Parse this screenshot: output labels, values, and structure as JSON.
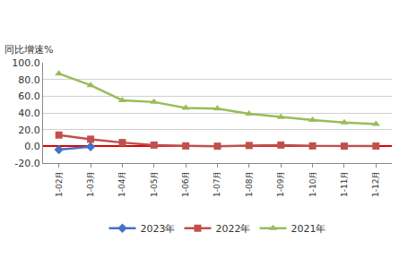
{
  "chart_data": {
    "type": "line",
    "y_label": "同比增速%",
    "categories": [
      "1-02月",
      "1-03月",
      "1-04月",
      "1-05月",
      "1-06月",
      "1-07月",
      "1-08月",
      "1-09月",
      "1-10月",
      "1-11月",
      "1-12月"
    ],
    "series": [
      {
        "name": "2023年",
        "color": "#4472c4",
        "marker": "diamond",
        "values": [
          -4.0,
          -0.5,
          null,
          null,
          null,
          null,
          null,
          null,
          null,
          null,
          null
        ]
      },
      {
        "name": "2022年",
        "color": "#c0504d",
        "marker": "square",
        "values": [
          13.5,
          8.5,
          4.5,
          1.5,
          0.5,
          0.2,
          1.0,
          1.5,
          0.5,
          0.2,
          0.3
        ]
      },
      {
        "name": "2021年",
        "color": "#9bbb59",
        "marker": "triangle-up",
        "values": [
          87.0,
          73.0,
          55.0,
          53.0,
          46.0,
          45.0,
          39.0,
          35.0,
          31.5,
          28.5,
          26.5
        ]
      }
    ],
    "ylim": [
      -20,
      100
    ],
    "yticks": [
      {
        "value": -20,
        "label": "-20.0"
      },
      {
        "value": 0,
        "label": "0.0"
      },
      {
        "value": 20,
        "label": "20.0"
      },
      {
        "value": 40,
        "label": "40.0"
      },
      {
        "value": 60,
        "label": "60.0"
      },
      {
        "value": 80,
        "label": "80.0"
      },
      {
        "value": 100,
        "label": "100.0"
      }
    ],
    "grid": true,
    "legend": "bottom"
  }
}
